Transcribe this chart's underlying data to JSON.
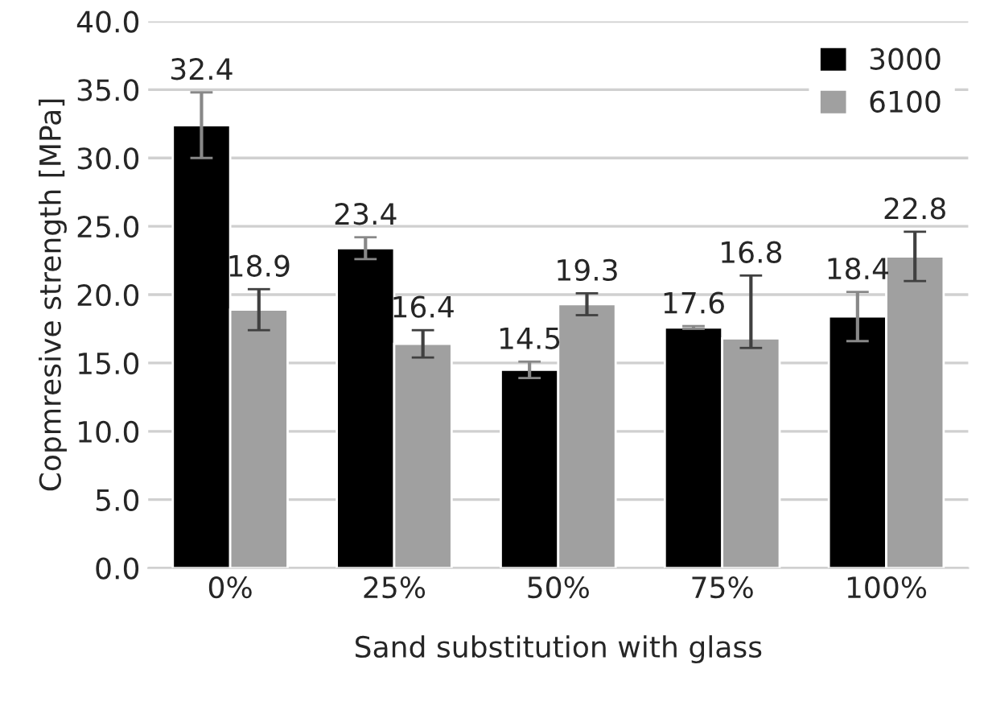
{
  "chart_data": {
    "type": "bar",
    "xlabel": "Sand substitution with glass",
    "ylabel": "Copmresive strength [MPa]",
    "categories": [
      "0%",
      "25%",
      "50%",
      "75%",
      "100%"
    ],
    "series": [
      {
        "name": "3000",
        "color": "#000000",
        "values": [
          32.4,
          23.4,
          14.5,
          17.6,
          18.4
        ],
        "errors": [
          2.4,
          0.8,
          0.6,
          0.1,
          1.8
        ]
      },
      {
        "name": "6100",
        "color": "#a0a0a0",
        "values": [
          18.9,
          16.4,
          19.3,
          16.8,
          22.8
        ],
        "errors": [
          1.5,
          1.0,
          0.8,
          [
            16.1,
            21.4
          ],
          1.8
        ]
      }
    ],
    "ylim": [
      0,
      40
    ],
    "yticks": [
      {
        "value": 0,
        "label": "0.0"
      },
      {
        "value": 5,
        "label": "5.0"
      },
      {
        "value": 10,
        "label": "10.0"
      },
      {
        "value": 15,
        "label": "15.0"
      },
      {
        "value": 20,
        "label": "20.0"
      },
      {
        "value": 25,
        "label": "25.0"
      },
      {
        "value": 30,
        "label": "30.0"
      },
      {
        "value": 35,
        "label": "35.0"
      },
      {
        "value": 40,
        "label": "40.0"
      }
    ],
    "grid": "y",
    "legend": "top right",
    "data_labels": true
  }
}
